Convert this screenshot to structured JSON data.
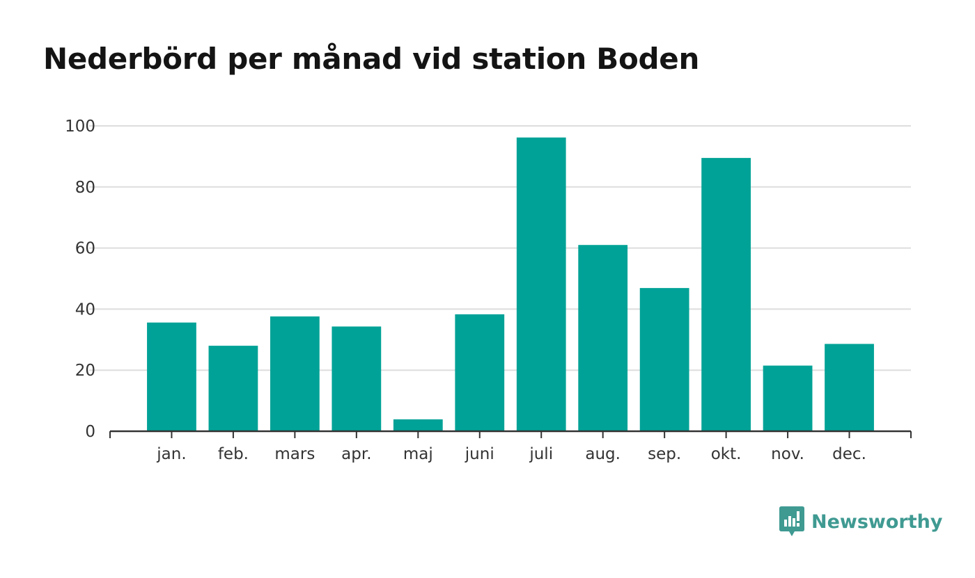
{
  "chart_data": {
    "type": "bar",
    "title": "Nederbörd per månad vid station Boden",
    "xlabel": "",
    "ylabel": "",
    "categories": [
      "jan.",
      "feb.",
      "mars",
      "apr.",
      "maj",
      "juni",
      "juli",
      "aug.",
      "sep.",
      "okt.",
      "nov.",
      "dec."
    ],
    "values": [
      35.6,
      28.0,
      37.6,
      34.3,
      3.9,
      38.3,
      96.2,
      61.0,
      46.9,
      89.5,
      21.5,
      28.6
    ],
    "ylim": [
      0,
      100
    ],
    "yticks": [
      0,
      20,
      40,
      60,
      80,
      100
    ],
    "grid": true,
    "legend": "none",
    "colors": {
      "bar": "#00a297",
      "grid": "#dddddd",
      "axis": "#333333",
      "title": "#141414",
      "brand": "#3f9a92"
    }
  },
  "brand": {
    "name": "Newsworthy",
    "icon": "newsworthy-logo-icon"
  }
}
